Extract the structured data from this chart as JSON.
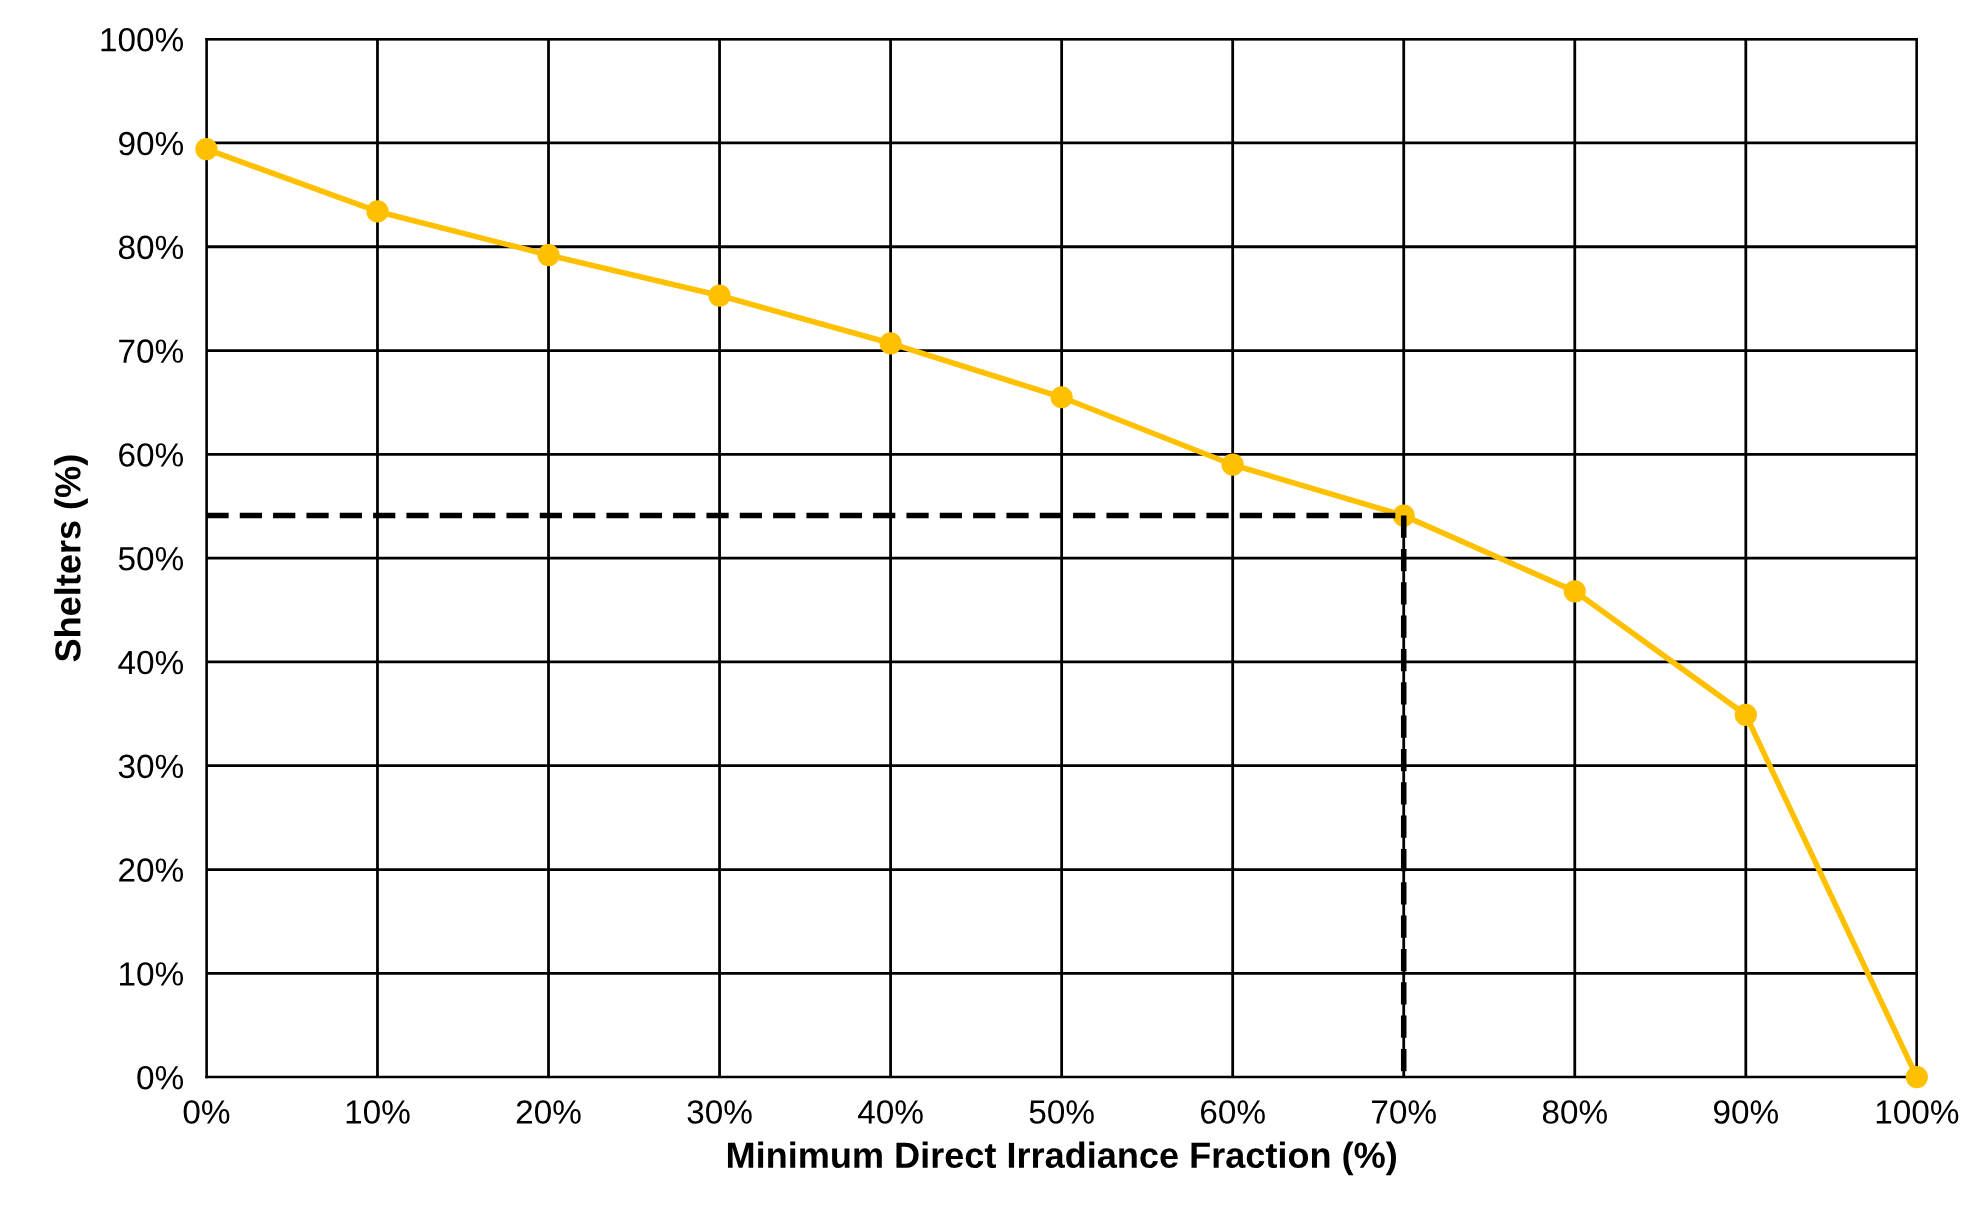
{
  "chart_data": {
    "type": "line",
    "xlabel": "Minimum Direct Irradiance Fraction (%)",
    "ylabel": "Shelters (%)",
    "x": [
      0,
      10,
      20,
      30,
      40,
      50,
      60,
      70,
      80,
      90,
      100
    ],
    "series": [
      {
        "color": "#ffc000",
        "values": [
          89.4,
          83.4,
          79.2,
          75.3,
          70.7,
          65.5,
          59.0,
          54.1,
          46.8,
          34.9,
          0
        ],
        "marker": "circle",
        "line_style": "solid"
      },
      {
        "color": "#000000",
        "values": [
          54.1,
          54.1,
          54.1,
          54.1,
          54.1,
          54.1,
          54.1,
          54.1,
          null,
          null,
          null
        ],
        "marker": "none",
        "line_style": "dashed"
      },
      {
        "color": "#000000",
        "x": [
          70,
          70
        ],
        "values": [
          54.1,
          0
        ],
        "marker": "none",
        "line_style": "dashed"
      }
    ],
    "xlim": [
      0,
      100
    ],
    "ylim": [
      0,
      100
    ],
    "xticks": [
      {
        "value": 0,
        "label": "0%"
      },
      {
        "value": 10,
        "label": "10%"
      },
      {
        "value": 20,
        "label": "20%"
      },
      {
        "value": 30,
        "label": "30%"
      },
      {
        "value": 40,
        "label": "40%"
      },
      {
        "value": 50,
        "label": "50%"
      },
      {
        "value": 60,
        "label": "60%"
      },
      {
        "value": 70,
        "label": "70%"
      },
      {
        "value": 80,
        "label": "80%"
      },
      {
        "value": 90,
        "label": "90%"
      },
      {
        "value": 100,
        "label": "100%"
      }
    ],
    "yticks": [
      {
        "value": 0,
        "label": "0%"
      },
      {
        "value": 10,
        "label": "10%"
      },
      {
        "value": 20,
        "label": "20%"
      },
      {
        "value": 30,
        "label": "30%"
      },
      {
        "value": 40,
        "label": "40%"
      },
      {
        "value": 50,
        "label": "50%"
      },
      {
        "value": 60,
        "label": "60%"
      },
      {
        "value": 70,
        "label": "70%"
      },
      {
        "value": 80,
        "label": "80%"
      },
      {
        "value": 90,
        "label": "90%"
      },
      {
        "value": 100,
        "label": "100%"
      }
    ],
    "grid": true,
    "legend": false
  }
}
